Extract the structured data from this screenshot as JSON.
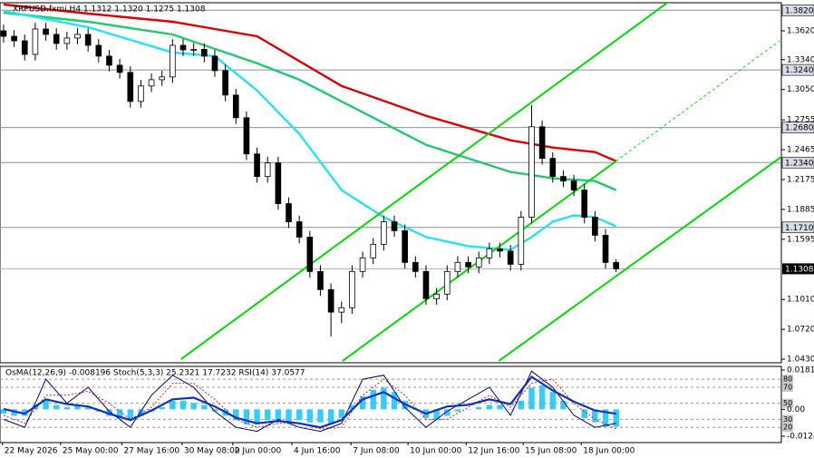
{
  "chart_data": [
    {
      "type": "candlestick",
      "title": "XRPUSD.fxmi,H4  1.1312 1.1320 1.1275 1.1308",
      "xlim": [
        -0.34,
        73.65
      ],
      "ylim": [
        1.0395,
        1.3893
      ],
      "xticks": [
        {
          "value": -0.1,
          "label": "22 May 2026"
        },
        {
          "value": 5.4,
          "label": "25 May 00:00"
        },
        {
          "value": 11.2,
          "label": "27 May 16:00"
        },
        {
          "value": 16.9,
          "label": "30 May 08:00"
        },
        {
          "value": 21.7,
          "label": "2 Jun 00:00"
        },
        {
          "value": 27.3,
          "label": "4 Jun 16:00"
        },
        {
          "value": 32.9,
          "label": "7 Jun 08:00"
        },
        {
          "value": 38.3,
          "label": "10 Jun 00:00"
        },
        {
          "value": 43.8,
          "label": "12 Jun 16:00"
        },
        {
          "value": 49.2,
          "label": "15 Jun 08:00"
        },
        {
          "value": 54.7,
          "label": "18 Jun 00:00"
        }
      ],
      "yticks": [
        {
          "value": 1.362,
          "label": "1.3620"
        },
        {
          "value": 1.334,
          "label": "1.3340"
        },
        {
          "value": 1.305,
          "label": "1.3050"
        },
        {
          "value": 1.2755,
          "label": "1.2755"
        },
        {
          "value": 1.2465,
          "label": "1.2465"
        },
        {
          "value": 1.2175,
          "label": "1.2175"
        },
        {
          "value": 1.1885,
          "label": "1.1885"
        },
        {
          "value": 1.1595,
          "label": "1.1595"
        },
        {
          "value": 1.101,
          "label": "1.1010"
        },
        {
          "value": 1.072,
          "label": "1.0720"
        },
        {
          "value": 1.043,
          "label": "1.0430"
        }
      ],
      "levels": [
        {
          "value": 1.382,
          "label": "1.3820"
        },
        {
          "value": 1.324,
          "label": "1.3240"
        },
        {
          "value": 1.268,
          "label": "1.2680"
        },
        {
          "value": 1.234,
          "label": "1.2340"
        },
        {
          "value": 1.171,
          "label": "1.1710"
        }
      ],
      "last_price": {
        "value": 1.1308,
        "label": "1.1308"
      },
      "open": [
        1.362,
        1.3567,
        1.3523,
        1.3391,
        1.3638,
        1.3585,
        1.3497,
        1.355,
        1.3585,
        1.3479,
        1.3374,
        1.3286,
        1.3216,
        1.2934,
        1.3084,
        1.3145,
        1.3172,
        1.3479,
        1.3435,
        1.344,
        1.3374,
        1.3233,
        1.2996,
        1.2776,
        1.2424,
        1.2205,
        1.2337,
        1.1941,
        1.1765,
        1.1616,
        1.1282,
        1.1106,
        1.0887,
        1.093,
        1.1282,
        1.1414,
        1.1546,
        1.1765,
        1.1678,
        1.137,
        1.1282,
        1.1018,
        1.1062,
        1.1282,
        1.137,
        1.1326,
        1.1414,
        1.1502,
        1.148,
        1.1352,
        1.1809,
        1.2688,
        1.2381,
        1.2205,
        1.2161,
        1.2073,
        1.1809,
        1.1634,
        1.137
      ],
      "high": [
        1.368,
        1.3627,
        1.3583,
        1.3698,
        1.3698,
        1.3645,
        1.361,
        1.3645,
        1.3645,
        1.3539,
        1.3434,
        1.3346,
        1.3276,
        1.3144,
        1.3205,
        1.3232,
        1.3539,
        1.3539,
        1.35,
        1.35,
        1.3434,
        1.3293,
        1.3056,
        1.2836,
        1.2484,
        1.2397,
        1.2397,
        1.2001,
        1.1825,
        1.1676,
        1.1342,
        1.1166,
        1.099,
        1.1342,
        1.1474,
        1.1606,
        1.1825,
        1.1825,
        1.1738,
        1.143,
        1.1342,
        1.1122,
        1.1342,
        1.143,
        1.143,
        1.1474,
        1.1562,
        1.1562,
        1.154,
        1.1869,
        1.29,
        1.2748,
        1.2441,
        1.2265,
        1.2221,
        1.2133,
        1.1869,
        1.1694,
        1.14
      ],
      "low": [
        1.3507,
        1.3463,
        1.3331,
        1.3331,
        1.3525,
        1.3437,
        1.3437,
        1.349,
        1.3419,
        1.3314,
        1.3226,
        1.3156,
        1.2874,
        1.2874,
        1.3024,
        1.3085,
        1.3112,
        1.3375,
        1.3375,
        1.3314,
        1.3173,
        1.2936,
        1.2716,
        1.2364,
        1.2145,
        1.2145,
        1.1881,
        1.1705,
        1.1556,
        1.1222,
        1.1046,
        1.065,
        1.078,
        1.087,
        1.1222,
        1.1354,
        1.1486,
        1.1618,
        1.131,
        1.1222,
        1.0958,
        1.0958,
        1.1002,
        1.1222,
        1.1266,
        1.1266,
        1.1354,
        1.142,
        1.1292,
        1.1292,
        1.1749,
        1.2321,
        1.2145,
        1.2101,
        1.2013,
        1.1749,
        1.1574,
        1.131,
        1.1275
      ],
      "close": [
        1.3567,
        1.3523,
        1.3391,
        1.3638,
        1.3585,
        1.3497,
        1.355,
        1.3585,
        1.3479,
        1.3374,
        1.3286,
        1.3216,
        1.2934,
        1.3084,
        1.3145,
        1.3172,
        1.3479,
        1.3435,
        1.344,
        1.3374,
        1.3233,
        1.2996,
        1.2776,
        1.2424,
        1.2205,
        1.2337,
        1.1941,
        1.1765,
        1.1616,
        1.1282,
        1.1106,
        1.0887,
        1.093,
        1.1282,
        1.1414,
        1.1546,
        1.1765,
        1.1678,
        1.137,
        1.1282,
        1.1018,
        1.1062,
        1.1282,
        1.137,
        1.1326,
        1.1414,
        1.1502,
        1.148,
        1.1352,
        1.1809,
        1.2688,
        1.2381,
        1.2205,
        1.2161,
        1.2073,
        1.1809,
        1.1634,
        1.137,
        1.1308
      ],
      "moving_averages": [
        {
          "color": "#e00000",
          "x": [
            0,
            8,
            16,
            24,
            32,
            40,
            48,
            52,
            56,
            58
          ],
          "values": [
            1.3875,
            1.3787,
            1.3708,
            1.3567,
            1.3084,
            1.2794,
            1.2556,
            1.2486,
            1.2442,
            1.2354
          ]
        },
        {
          "color": "#1fcc6a",
          "x": [
            0,
            8,
            16,
            24,
            28,
            32,
            40,
            48,
            52,
            56,
            58
          ],
          "values": [
            1.3796,
            1.3708,
            1.3585,
            1.3304,
            1.3145,
            1.2934,
            1.2512,
            1.2249,
            1.2187,
            1.2161,
            1.2073
          ]
        },
        {
          "color": "#22e4f4",
          "x": [
            0,
            8,
            16,
            20,
            24,
            28,
            32,
            36,
            40,
            44,
            48,
            50,
            52,
            54,
            56,
            58
          ],
          "values": [
            1.3813,
            1.3655,
            1.3409,
            1.3374,
            1.304,
            1.2618,
            1.2073,
            1.1809,
            1.1616,
            1.1528,
            1.1493,
            1.1616,
            1.1765,
            1.1827,
            1.1809,
            1.1721
          ]
        }
      ],
      "trendlines": [
        {
          "color": "#00dd00",
          "dashed": false,
          "x": [
            16.8,
            63.2
          ],
          "values": [
            1.043,
            1.3919
          ]
        },
        {
          "color": "#00dd00",
          "dashed": false,
          "x": [
            32.1,
            58
          ],
          "values": [
            1.0413,
            1.2354
          ]
        },
        {
          "color": "#00dd00",
          "dashed": true,
          "x": [
            58,
            73.5
          ],
          "values": [
            1.2354,
            1.3523
          ]
        },
        {
          "color": "#00dd00",
          "dashed": false,
          "x": [
            46.9,
            73.7
          ],
          "values": [
            1.0413,
            1.24
          ]
        }
      ]
    },
    {
      "type": "oscillator",
      "title": "OsMA(12,26,9) -0.008196  Stoch(5,3,3) 25.2321 17.7232  RSI(14) 37.0577",
      "xlim": [
        -0.34,
        73.65
      ],
      "ylim": [
        -0.01533,
        0.01981
      ],
      "yticks": [
        0.01814,
        {
          "value": 0,
          "label": "0.00"
        },
        -0.0124
      ],
      "y2lim": [
        1,
        96
      ],
      "y2ticks": [
        80,
        70,
        50,
        30,
        20
      ],
      "histogram": {
        "color": "#33ccff",
        "values": [
          -0.002,
          -0.003,
          -0.003,
          0.002,
          0.004,
          0.002,
          0.001,
          0.002,
          0.001,
          -0.001,
          -0.003,
          -0.004,
          -0.005,
          -0.003,
          -0.001,
          0.001,
          0.004,
          0.004,
          0.003,
          0.002,
          -0.001,
          -0.003,
          -0.005,
          -0.007,
          -0.007,
          -0.005,
          -0.006,
          -0.006,
          -0.005,
          -0.006,
          -0.006,
          -0.007,
          -0.004,
          0.002,
          0.006,
          0.009,
          0.01,
          0.008,
          0.004,
          0.0,
          -0.004,
          -0.005,
          -0.003,
          -0.001,
          0.0,
          0.001,
          0.002,
          0.002,
          0.0,
          0.004,
          0.01,
          0.011,
          0.008,
          0.004,
          0.0,
          -0.004,
          -0.006,
          -0.008,
          -0.008
        ]
      },
      "series": [
        {
          "color": "#d02020",
          "dashed": true,
          "width": 1,
          "axis": "y2",
          "x": [
            0,
            2,
            4,
            6,
            8,
            10,
            12,
            14,
            16,
            18,
            20,
            22,
            24,
            26,
            28,
            30,
            32,
            34,
            36,
            38,
            40,
            42,
            44,
            46,
            48,
            50,
            52,
            54,
            56,
            58
          ],
          "values": [
            35,
            25,
            60,
            60,
            65,
            50,
            30,
            45,
            75,
            75,
            55,
            30,
            20,
            25,
            25,
            18,
            20,
            60,
            80,
            60,
            30,
            30,
            45,
            60,
            45,
            75,
            80,
            50,
            30,
            18
          ]
        },
        {
          "color": "#000080",
          "dashed": false,
          "width": 1,
          "axis": "y2",
          "x": [
            0,
            2,
            4,
            6,
            8,
            10,
            12,
            14,
            16,
            18,
            20,
            22,
            24,
            26,
            28,
            30,
            32,
            34,
            36,
            38,
            40,
            42,
            44,
            46,
            48,
            50,
            52,
            54,
            56,
            58
          ],
          "values": [
            30,
            20,
            80,
            50,
            70,
            40,
            20,
            60,
            85,
            70,
            40,
            20,
            15,
            30,
            20,
            15,
            25,
            80,
            85,
            45,
            20,
            40,
            55,
            70,
            35,
            90,
            70,
            35,
            20,
            25
          ]
        },
        {
          "color": "#1030c0",
          "dashed": false,
          "width": 2.2,
          "axis": "y2",
          "x": [
            0,
            2,
            4,
            6,
            8,
            10,
            12,
            14,
            16,
            18,
            20,
            22,
            24,
            26,
            28,
            30,
            32,
            34,
            36,
            38,
            40,
            42,
            44,
            46,
            48,
            50,
            52,
            54,
            56,
            58
          ],
          "values": [
            43,
            37,
            55,
            49,
            46,
            37,
            29,
            41,
            55,
            57,
            46,
            32,
            25,
            28,
            25,
            20,
            29,
            55,
            64,
            49,
            37,
            46,
            48,
            55,
            49,
            83,
            66,
            52,
            41,
            37
          ]
        }
      ]
    }
  ]
}
